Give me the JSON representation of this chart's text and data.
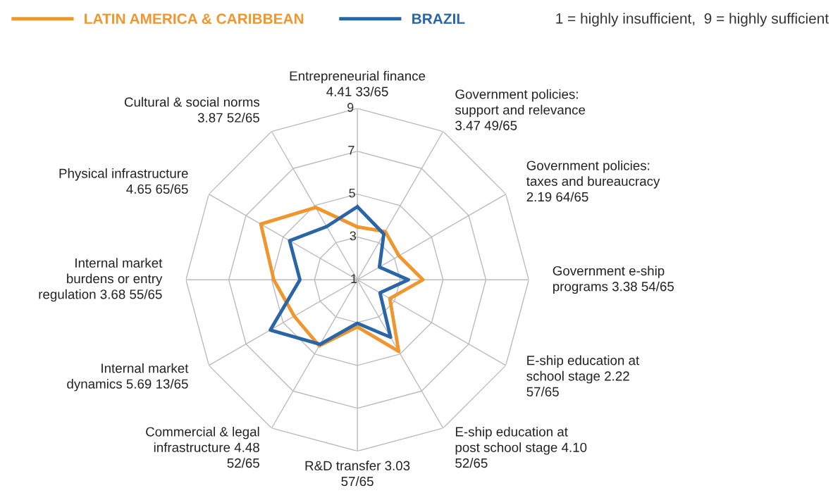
{
  "chart_data": {
    "type": "radar",
    "categories": [
      "Entrepreneurial finance\n4.41 33/65",
      "Government policies:\nsupport and relevance\n3.47 49/65",
      "Government policies:\ntaxes and bureaucracy\n2.19 64/65",
      "Government e-ship\nprograms 3.38 54/65",
      "E-ship education at\nschool stage 2.22\n57/65",
      "E-ship education at\npost school stage 4.10\n52/65",
      "R&D transfer 3.03\n57/65",
      "Commercial & legal\ninfrastructure 4.48\n52/65",
      "Internal market\ndynamics 5.69 13/65",
      "Internal market\nburdens or entry\nregulation 3.68 55/65",
      "Physical infrastructure\n4.65 65/65",
      "Cultural & social norms\n3.87 52/65"
    ],
    "series": [
      {
        "name": "LATIN AMERICA & CARIBBEAN",
        "color": "#f0962e",
        "values": [
          3.47,
          3.6,
          3.24,
          4.06,
          2.75,
          4.86,
          3.2,
          4.56,
          4.4,
          4.9,
          6.2,
          4.9
        ]
      },
      {
        "name": "BRAZIL",
        "color": "#2a66a6",
        "values": [
          4.41,
          3.47,
          2.19,
          3.38,
          2.22,
          4.1,
          3.03,
          4.48,
          5.69,
          3.68,
          4.65,
          3.87
        ]
      }
    ],
    "ylim": [
      1,
      9
    ],
    "yticks": [
      1,
      3,
      5,
      7,
      9
    ],
    "grid": true,
    "legend": "top",
    "annotations": [
      "1 = highly insufficient,  9 = highly sufficient"
    ]
  }
}
